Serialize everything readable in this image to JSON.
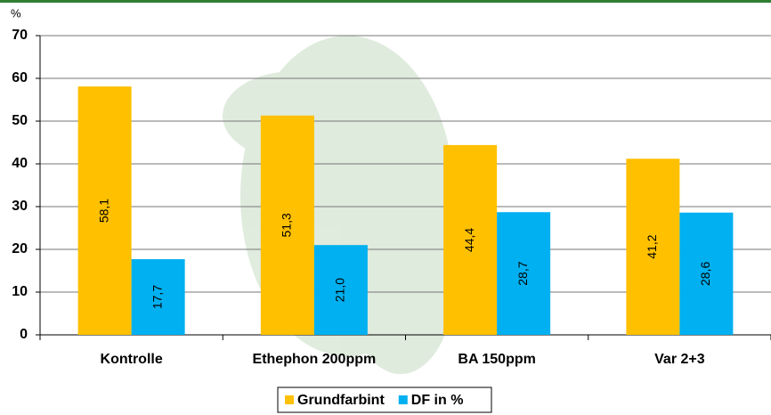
{
  "chart_data": {
    "type": "bar",
    "y_label": "%",
    "categories": [
      "Kontrolle",
      "Ethephon 200ppm",
      "BA 150ppm",
      "Var 2+3"
    ],
    "series": [
      {
        "name": "Grundfarbint",
        "color": "#ffc000",
        "values": [
          58.1,
          51.3,
          44.4,
          41.2
        ],
        "value_labels": [
          "58,1",
          "51,3",
          "44,4",
          "41,2"
        ]
      },
      {
        "name": "DF in %",
        "color": "#00b0f0",
        "values": [
          17.7,
          21.0,
          28.7,
          28.6
        ],
        "value_labels": [
          "17,7",
          "21,0",
          "28,7",
          "28,6"
        ]
      }
    ],
    "ylim": [
      0,
      70
    ],
    "yticks": [
      0,
      10,
      20,
      30,
      40,
      50,
      60,
      70
    ],
    "grid": true
  }
}
